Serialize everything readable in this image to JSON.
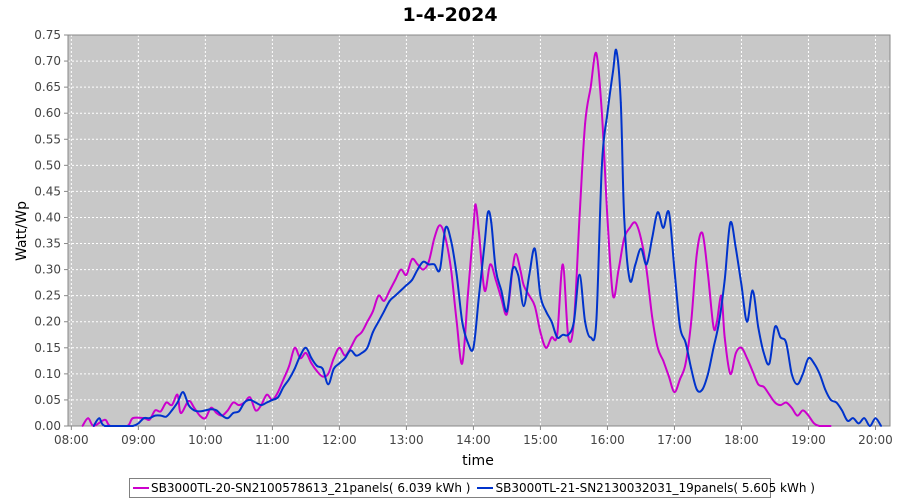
{
  "chart_data": {
    "type": "line",
    "title": "1-4-2024",
    "xlabel": "time",
    "ylabel": "Watt/Wp",
    "x_ticks": [
      "08:00",
      "09:00",
      "10:00",
      "11:00",
      "12:00",
      "13:00",
      "14:00",
      "15:00",
      "16:00",
      "17:00",
      "18:00",
      "19:00",
      "20:00"
    ],
    "y_ticks": [
      "0.00",
      "0.05",
      "0.10",
      "0.15",
      "0.20",
      "0.25",
      "0.30",
      "0.35",
      "0.40",
      "0.45",
      "0.50",
      "0.55",
      "0.60",
      "0.65",
      "0.70",
      "0.75"
    ],
    "xlim": [
      "07:57",
      "20:13"
    ],
    "ylim": [
      0,
      0.75
    ],
    "grid": true,
    "legend_position": "bottom",
    "background_color": "#c8c8c8",
    "series": [
      {
        "name": "SB3000TL-20-SN2100578613_21panels( 6.039 kWh )",
        "color": "#cc00cc",
        "points": [
          [
            "08:10",
            0.0
          ],
          [
            "08:15",
            0.015
          ],
          [
            "08:20",
            0.0
          ],
          [
            "08:30",
            0.012
          ],
          [
            "08:35",
            0.0
          ],
          [
            "08:50",
            0.0
          ],
          [
            "08:55",
            0.015
          ],
          [
            "09:05",
            0.015
          ],
          [
            "09:10",
            0.012
          ],
          [
            "09:15",
            0.03
          ],
          [
            "09:20",
            0.028
          ],
          [
            "09:25",
            0.045
          ],
          [
            "09:30",
            0.04
          ],
          [
            "09:35",
            0.06
          ],
          [
            "09:38",
            0.025
          ],
          [
            "09:45",
            0.048
          ],
          [
            "09:50",
            0.035
          ],
          [
            "09:55",
            0.02
          ],
          [
            "10:00",
            0.015
          ],
          [
            "10:05",
            0.035
          ],
          [
            "10:10",
            0.025
          ],
          [
            "10:15",
            0.02
          ],
          [
            "10:20",
            0.03
          ],
          [
            "10:25",
            0.045
          ],
          [
            "10:30",
            0.04
          ],
          [
            "10:35",
            0.045
          ],
          [
            "10:40",
            0.055
          ],
          [
            "10:45",
            0.03
          ],
          [
            "10:50",
            0.04
          ],
          [
            "10:55",
            0.06
          ],
          [
            "11:00",
            0.05
          ],
          [
            "11:05",
            0.065
          ],
          [
            "11:10",
            0.09
          ],
          [
            "11:15",
            0.115
          ],
          [
            "11:20",
            0.15
          ],
          [
            "11:25",
            0.13
          ],
          [
            "11:30",
            0.14
          ],
          [
            "11:35",
            0.12
          ],
          [
            "11:40",
            0.105
          ],
          [
            "11:45",
            0.095
          ],
          [
            "11:50",
            0.1
          ],
          [
            "11:55",
            0.13
          ],
          [
            "12:00",
            0.15
          ],
          [
            "12:05",
            0.135
          ],
          [
            "12:10",
            0.15
          ],
          [
            "12:15",
            0.17
          ],
          [
            "12:20",
            0.18
          ],
          [
            "12:25",
            0.2
          ],
          [
            "12:30",
            0.22
          ],
          [
            "12:35",
            0.25
          ],
          [
            "12:40",
            0.24
          ],
          [
            "12:45",
            0.26
          ],
          [
            "12:50",
            0.28
          ],
          [
            "12:55",
            0.3
          ],
          [
            "13:00",
            0.29
          ],
          [
            "13:05",
            0.32
          ],
          [
            "13:10",
            0.31
          ],
          [
            "13:15",
            0.3
          ],
          [
            "13:20",
            0.315
          ],
          [
            "13:25",
            0.36
          ],
          [
            "13:30",
            0.385
          ],
          [
            "13:35",
            0.36
          ],
          [
            "13:40",
            0.3
          ],
          [
            "13:45",
            0.2
          ],
          [
            "13:50",
            0.12
          ],
          [
            "13:55",
            0.25
          ],
          [
            "14:00",
            0.38
          ],
          [
            "14:02",
            0.425
          ],
          [
            "14:05",
            0.37
          ],
          [
            "14:10",
            0.26
          ],
          [
            "14:15",
            0.31
          ],
          [
            "14:20",
            0.28
          ],
          [
            "14:25",
            0.245
          ],
          [
            "14:30",
            0.215
          ],
          [
            "14:35",
            0.3
          ],
          [
            "14:38",
            0.33
          ],
          [
            "14:42",
            0.3
          ],
          [
            "14:45",
            0.27
          ],
          [
            "14:50",
            0.25
          ],
          [
            "14:55",
            0.23
          ],
          [
            "15:00",
            0.18
          ],
          [
            "15:05",
            0.15
          ],
          [
            "15:10",
            0.17
          ],
          [
            "15:15",
            0.175
          ],
          [
            "15:20",
            0.31
          ],
          [
            "15:25",
            0.17
          ],
          [
            "15:30",
            0.2
          ],
          [
            "15:35",
            0.4
          ],
          [
            "15:40",
            0.58
          ],
          [
            "15:45",
            0.65
          ],
          [
            "15:50",
            0.715
          ],
          [
            "15:55",
            0.6
          ],
          [
            "16:00",
            0.4
          ],
          [
            "16:05",
            0.25
          ],
          [
            "16:10",
            0.3
          ],
          [
            "16:15",
            0.36
          ],
          [
            "16:20",
            0.38
          ],
          [
            "16:25",
            0.39
          ],
          [
            "16:30",
            0.36
          ],
          [
            "16:35",
            0.3
          ],
          [
            "16:40",
            0.21
          ],
          [
            "16:45",
            0.15
          ],
          [
            "16:50",
            0.125
          ],
          [
            "16:55",
            0.095
          ],
          [
            "17:00",
            0.065
          ],
          [
            "17:05",
            0.09
          ],
          [
            "17:10",
            0.12
          ],
          [
            "17:15",
            0.2
          ],
          [
            "17:20",
            0.33
          ],
          [
            "17:25",
            0.37
          ],
          [
            "17:30",
            0.29
          ],
          [
            "17:35",
            0.19
          ],
          [
            "17:38",
            0.2
          ],
          [
            "17:42",
            0.25
          ],
          [
            "17:45",
            0.17
          ],
          [
            "17:50",
            0.1
          ],
          [
            "17:55",
            0.14
          ],
          [
            "18:00",
            0.15
          ],
          [
            "18:05",
            0.13
          ],
          [
            "18:10",
            0.105
          ],
          [
            "18:15",
            0.08
          ],
          [
            "18:20",
            0.075
          ],
          [
            "18:25",
            0.06
          ],
          [
            "18:30",
            0.045
          ],
          [
            "18:35",
            0.04
          ],
          [
            "18:40",
            0.045
          ],
          [
            "18:45",
            0.035
          ],
          [
            "18:50",
            0.02
          ],
          [
            "18:55",
            0.03
          ],
          [
            "19:00",
            0.02
          ],
          [
            "19:05",
            0.005
          ],
          [
            "19:10",
            0.0
          ],
          [
            "19:20",
            0.0
          ]
        ]
      },
      {
        "name": "SB3000TL-21-SN2130032031_19panels( 5.605 kWh )",
        "color": "#0033cc",
        "points": [
          [
            "08:20",
            0.0
          ],
          [
            "08:25",
            0.015
          ],
          [
            "08:30",
            0.0
          ],
          [
            "08:50",
            0.0
          ],
          [
            "08:55",
            0.0
          ],
          [
            "09:00",
            0.005
          ],
          [
            "09:05",
            0.015
          ],
          [
            "09:10",
            0.015
          ],
          [
            "09:15",
            0.02
          ],
          [
            "09:20",
            0.02
          ],
          [
            "09:25",
            0.018
          ],
          [
            "09:30",
            0.03
          ],
          [
            "09:35",
            0.045
          ],
          [
            "09:40",
            0.065
          ],
          [
            "09:45",
            0.04
          ],
          [
            "09:50",
            0.03
          ],
          [
            "09:55",
            0.028
          ],
          [
            "10:00",
            0.03
          ],
          [
            "10:05",
            0.032
          ],
          [
            "10:10",
            0.03
          ],
          [
            "10:15",
            0.02
          ],
          [
            "10:20",
            0.015
          ],
          [
            "10:25",
            0.025
          ],
          [
            "10:30",
            0.028
          ],
          [
            "10:35",
            0.045
          ],
          [
            "10:40",
            0.05
          ],
          [
            "10:45",
            0.045
          ],
          [
            "10:50",
            0.04
          ],
          [
            "10:55",
            0.045
          ],
          [
            "11:00",
            0.05
          ],
          [
            "11:05",
            0.055
          ],
          [
            "11:10",
            0.075
          ],
          [
            "11:15",
            0.09
          ],
          [
            "11:20",
            0.11
          ],
          [
            "11:25",
            0.135
          ],
          [
            "11:30",
            0.15
          ],
          [
            "11:35",
            0.13
          ],
          [
            "11:40",
            0.115
          ],
          [
            "11:45",
            0.11
          ],
          [
            "11:50",
            0.08
          ],
          [
            "11:55",
            0.11
          ],
          [
            "12:00",
            0.12
          ],
          [
            "12:05",
            0.13
          ],
          [
            "12:10",
            0.145
          ],
          [
            "12:15",
            0.135
          ],
          [
            "12:20",
            0.14
          ],
          [
            "12:25",
            0.15
          ],
          [
            "12:30",
            0.18
          ],
          [
            "12:35",
            0.2
          ],
          [
            "12:40",
            0.22
          ],
          [
            "12:45",
            0.24
          ],
          [
            "12:50",
            0.25
          ],
          [
            "12:55",
            0.26
          ],
          [
            "13:00",
            0.27
          ],
          [
            "13:05",
            0.28
          ],
          [
            "13:10",
            0.3
          ],
          [
            "13:15",
            0.315
          ],
          [
            "13:20",
            0.31
          ],
          [
            "13:25",
            0.31
          ],
          [
            "13:30",
            0.3
          ],
          [
            "13:35",
            0.38
          ],
          [
            "13:40",
            0.355
          ],
          [
            "13:45",
            0.29
          ],
          [
            "13:50",
            0.2
          ],
          [
            "13:55",
            0.16
          ],
          [
            "14:00",
            0.15
          ],
          [
            "14:05",
            0.25
          ],
          [
            "14:10",
            0.35
          ],
          [
            "14:13",
            0.41
          ],
          [
            "14:16",
            0.39
          ],
          [
            "14:20",
            0.3
          ],
          [
            "14:25",
            0.26
          ],
          [
            "14:30",
            0.22
          ],
          [
            "14:35",
            0.3
          ],
          [
            "14:40",
            0.29
          ],
          [
            "14:45",
            0.23
          ],
          [
            "14:50",
            0.29
          ],
          [
            "14:55",
            0.34
          ],
          [
            "15:00",
            0.25
          ],
          [
            "15:05",
            0.22
          ],
          [
            "15:10",
            0.2
          ],
          [
            "15:15",
            0.17
          ],
          [
            "15:20",
            0.175
          ],
          [
            "15:25",
            0.175
          ],
          [
            "15:30",
            0.2
          ],
          [
            "15:35",
            0.29
          ],
          [
            "15:40",
            0.2
          ],
          [
            "15:45",
            0.17
          ],
          [
            "15:50",
            0.2
          ],
          [
            "15:55",
            0.5
          ],
          [
            "16:00",
            0.6
          ],
          [
            "16:05",
            0.68
          ],
          [
            "16:08",
            0.72
          ],
          [
            "16:12",
            0.62
          ],
          [
            "16:15",
            0.4
          ],
          [
            "16:20",
            0.28
          ],
          [
            "16:25",
            0.31
          ],
          [
            "16:30",
            0.34
          ],
          [
            "16:35",
            0.31
          ],
          [
            "16:40",
            0.36
          ],
          [
            "16:45",
            0.41
          ],
          [
            "16:50",
            0.38
          ],
          [
            "16:55",
            0.41
          ],
          [
            "17:00",
            0.3
          ],
          [
            "17:05",
            0.19
          ],
          [
            "17:10",
            0.16
          ],
          [
            "17:15",
            0.11
          ],
          [
            "17:20",
            0.07
          ],
          [
            "17:25",
            0.07
          ],
          [
            "17:30",
            0.1
          ],
          [
            "17:35",
            0.15
          ],
          [
            "17:40",
            0.2
          ],
          [
            "17:45",
            0.28
          ],
          [
            "17:50",
            0.39
          ],
          [
            "17:55",
            0.34
          ],
          [
            "18:00",
            0.27
          ],
          [
            "18:05",
            0.2
          ],
          [
            "18:10",
            0.26
          ],
          [
            "18:15",
            0.19
          ],
          [
            "18:20",
            0.14
          ],
          [
            "18:25",
            0.12
          ],
          [
            "18:30",
            0.19
          ],
          [
            "18:35",
            0.17
          ],
          [
            "18:40",
            0.16
          ],
          [
            "18:45",
            0.1
          ],
          [
            "18:50",
            0.08
          ],
          [
            "18:55",
            0.1
          ],
          [
            "19:00",
            0.13
          ],
          [
            "19:05",
            0.12
          ],
          [
            "19:10",
            0.1
          ],
          [
            "19:15",
            0.07
          ],
          [
            "19:20",
            0.05
          ],
          [
            "19:25",
            0.045
          ],
          [
            "19:30",
            0.03
          ],
          [
            "19:35",
            0.01
          ],
          [
            "19:40",
            0.015
          ],
          [
            "19:45",
            0.005
          ],
          [
            "19:50",
            0.015
          ],
          [
            "19:55",
            0.0
          ],
          [
            "20:00",
            0.015
          ],
          [
            "20:05",
            0.0
          ]
        ]
      }
    ]
  }
}
